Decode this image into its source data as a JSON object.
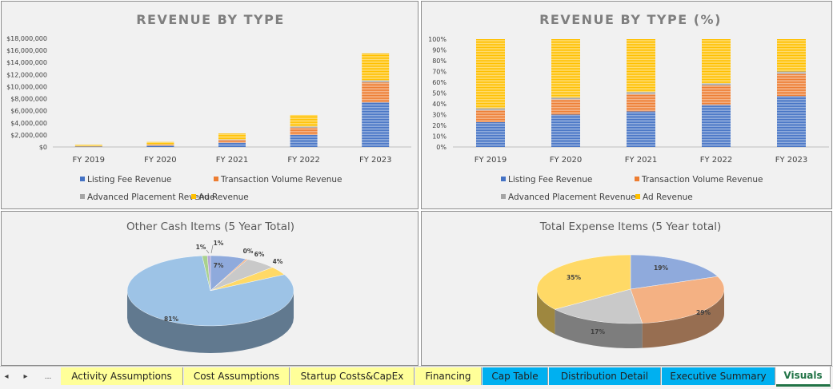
{
  "colors": {
    "listing": "#4472c4",
    "transaction": "#ed7d31",
    "advanced": "#a5a5a5",
    "ad": "#ffc000"
  },
  "chart_data": [
    {
      "type": "bar",
      "stacked": true,
      "title": "REVENUE BY TYPE",
      "categories": [
        "FY 2019",
        "FY 2020",
        "FY 2021",
        "FY 2022",
        "FY 2023"
      ],
      "ylim": [
        0,
        18000000
      ],
      "yticks": [
        "$18,000,000",
        "$16,000,000",
        "$14,000,000",
        "$12,000,000",
        "$10,000,000",
        "$8,000,000",
        "$6,000,000",
        "$4,000,000",
        "$2,000,000",
        "$0"
      ],
      "legend": "bottom",
      "series": [
        {
          "name": "Listing Fee Revenue",
          "values": [
            60000,
            200000,
            700000,
            2000000,
            7400000
          ]
        },
        {
          "name": "Transaction Volume Revenue",
          "values": [
            40000,
            150000,
            450000,
            1200000,
            3300000
          ]
        },
        {
          "name": "Advanced Placement Revenue",
          "values": [
            10000,
            30000,
            80000,
            200000,
            300000
          ]
        },
        {
          "name": "Ad Revenue",
          "values": [
            230000,
            450000,
            1000000,
            1900000,
            4500000
          ]
        }
      ]
    },
    {
      "type": "bar",
      "stacked": true,
      "normalized": true,
      "title": "REVENUE BY TYPE  (%)",
      "categories": [
        "FY 2019",
        "FY 2020",
        "FY 2021",
        "FY 2022",
        "FY 2023"
      ],
      "ylim": [
        0,
        100
      ],
      "yticks": [
        "100%",
        "90%",
        "80%",
        "70%",
        "60%",
        "50%",
        "40%",
        "30%",
        "20%",
        "10%",
        "0%"
      ],
      "legend": "bottom",
      "series": [
        {
          "name": "Listing Fee Revenue",
          "values": [
            23,
            30,
            33,
            39,
            47
          ]
        },
        {
          "name": "Transaction Volume Revenue",
          "values": [
            11,
            14,
            16,
            18,
            21
          ]
        },
        {
          "name": "Advanced Placement Revenue",
          "values": [
            2,
            2,
            2,
            2,
            2
          ]
        },
        {
          "name": "Ad Revenue",
          "values": [
            64,
            54,
            49,
            41,
            30
          ]
        }
      ]
    },
    {
      "type": "pie",
      "title": "Other Cash Items (5 Year Total)",
      "slices": [
        {
          "label": "7%",
          "value": 7,
          "color": "#8faadc"
        },
        {
          "label": "0%",
          "value": 0.4,
          "color": "#f4b183"
        },
        {
          "label": "6%",
          "value": 6,
          "color": "#c9c9c9"
        },
        {
          "label": "4%",
          "value": 4,
          "color": "#ffd966"
        },
        {
          "label": "81%",
          "value": 81,
          "color": "#9dc3e6"
        },
        {
          "label": "1%",
          "value": 1,
          "color": "#a9d18e"
        },
        {
          "label": "1%",
          "value": 0.6,
          "color": "#b4a7d6"
        }
      ]
    },
    {
      "type": "pie",
      "title": "Total Expense Items (5 Year total)",
      "slices": [
        {
          "label": "19%",
          "value": 19,
          "color": "#8faadc"
        },
        {
          "label": "29%",
          "value": 29,
          "color": "#f4b183"
        },
        {
          "label": "17%",
          "value": 17,
          "color": "#c9c9c9"
        },
        {
          "label": "35%",
          "value": 35,
          "color": "#ffd966"
        }
      ]
    }
  ],
  "tabs": [
    {
      "label": "Activity Assumptions",
      "style": "yellow"
    },
    {
      "label": "Cost Assumptions",
      "style": "yellow"
    },
    {
      "label": "Startup Costs&CapEx",
      "style": "yellow"
    },
    {
      "label": "Financing",
      "style": "yellow"
    },
    {
      "label": "Cap Table",
      "style": "blue"
    },
    {
      "label": "Distribution Detail",
      "style": "blue"
    },
    {
      "label": "Executive Summary",
      "style": "blue"
    },
    {
      "label": "Visuals",
      "style": "active"
    }
  ],
  "nav": {
    "prev": "◂",
    "next": "▸",
    "more": "..."
  }
}
